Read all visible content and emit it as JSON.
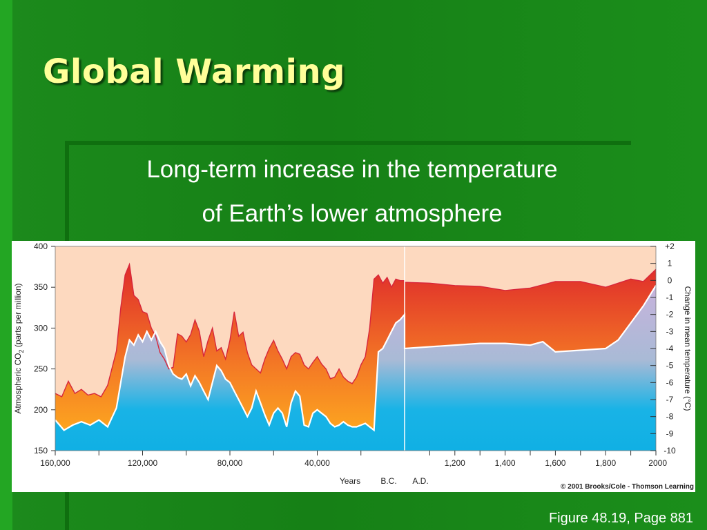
{
  "slide": {
    "title": "Global Warming",
    "subtitle_line1": "Long-term increase in the temperature",
    "subtitle_line2": "of Earth’s lower atmosphere",
    "figure_ref": "Figure 48.19, Page 881"
  },
  "colors": {
    "background": "#168016",
    "title": "#ffff99",
    "co2_line": "#d7263b",
    "temperature_line": "#ffffff",
    "sky_region": "#fdd9bf",
    "co2_gradient_top": "#df2b2b",
    "co2_gradient_bottom": "#ffb21e",
    "temp_fill_top": "#c7b3dc",
    "temp_fill_bottom": "#19b3e6"
  },
  "chart_data": {
    "type": "area",
    "x_axis": {
      "bc_tick_labels": [
        "160,000",
        "120,000",
        "80,000",
        "40,000"
      ],
      "ad_tick_labels": [
        "1,200",
        "1,400",
        "1,600",
        "1,800",
        "2000"
      ],
      "label": "Years",
      "bc_label": "B.C.",
      "ad_label": "A.D."
    },
    "y_left": {
      "label": "Atmospheric CO2 (parts per million)",
      "label_main": "Atmospheric CO",
      "label_sub": "2",
      "label_rest": " (parts per million)",
      "ticks": [
        "150",
        "200",
        "250",
        "300",
        "350",
        "400"
      ],
      "range": [
        150,
        400
      ]
    },
    "y_right": {
      "label": "Change in mean temperature (°C)",
      "ticks": [
        "+2",
        "1",
        "0",
        "-1",
        "-2",
        "-3",
        "-4",
        "-5",
        "-6",
        "-7",
        "-8",
        "-9",
        "-10"
      ],
      "range": [
        -10,
        2
      ]
    },
    "series": [
      {
        "name": "CO2",
        "bc": {
          "x": [
            160000,
            157000,
            154000,
            151000,
            148000,
            145000,
            142000,
            139000,
            136000,
            132000,
            130000,
            128000,
            126000,
            124000,
            122000,
            120000,
            118000,
            116000,
            114000,
            112000,
            110000,
            108000,
            106000,
            104000,
            102000,
            100000,
            98000,
            96000,
            94000,
            92000,
            90000,
            88000,
            86000,
            84000,
            82000,
            80000,
            78000,
            76000,
            74000,
            72000,
            70000,
            68000,
            66000,
            64000,
            62000,
            60000,
            58000,
            56000,
            54000,
            52000,
            50000,
            48000,
            46000,
            44000,
            42000,
            40000,
            38000,
            36000,
            34000,
            32000,
            30000,
            28000,
            26000,
            24000,
            22000,
            20000,
            18000,
            16000,
            14000,
            12000,
            10000,
            8000,
            6000,
            4000,
            2000,
            0
          ],
          "values": [
            220,
            216,
            235,
            220,
            225,
            218,
            220,
            216,
            230,
            272,
            325,
            365,
            378,
            340,
            335,
            320,
            318,
            300,
            290,
            270,
            262,
            250,
            252,
            293,
            290,
            283,
            292,
            310,
            296,
            265,
            285,
            300,
            272,
            276,
            262,
            285,
            320,
            290,
            295,
            270,
            255,
            250,
            245,
            262,
            275,
            285,
            272,
            262,
            250,
            265,
            270,
            268,
            255,
            250,
            258,
            265,
            256,
            250,
            238,
            240,
            250,
            240,
            235,
            232,
            240,
            255,
            265,
            300,
            360,
            365,
            355,
            362,
            350,
            360,
            358,
            358
          ]
        },
        "ad": {
          "x": [
            1000,
            1100,
            1200,
            1300,
            1400,
            1500,
            1600,
            1700,
            1800,
            1900,
            1950,
            2000
          ],
          "values": [
            356,
            355,
            352,
            351,
            346,
            349,
            357,
            357,
            350,
            360,
            357,
            372
          ]
        }
      },
      {
        "name": "Temperature",
        "bc": {
          "x": [
            160000,
            156000,
            152000,
            148000,
            144000,
            140000,
            136000,
            132000,
            128000,
            126000,
            124000,
            122000,
            120000,
            118000,
            116000,
            114000,
            112000,
            110000,
            108000,
            106000,
            104000,
            102000,
            100000,
            98000,
            96000,
            94000,
            92000,
            90000,
            88000,
            86000,
            84000,
            82000,
            80000,
            78000,
            76000,
            74000,
            72000,
            70000,
            68000,
            66000,
            64000,
            62000,
            60000,
            58000,
            56000,
            54000,
            52000,
            50000,
            48000,
            46000,
            44000,
            42000,
            40000,
            38000,
            36000,
            34000,
            32000,
            30000,
            28000,
            26000,
            24000,
            22000,
            20000,
            18000,
            16000,
            14000,
            12000,
            10000,
            8000,
            6000,
            4000,
            2000,
            0
          ],
          "values": [
            -8.2,
            -8.8,
            -8.5,
            -8.3,
            -8.5,
            -8.2,
            -8.6,
            -7.5,
            -4.5,
            -3.5,
            -3.8,
            -3.2,
            -3.6,
            -3.0,
            -3.5,
            -3.0,
            -3.6,
            -4.0,
            -5.0,
            -5.5,
            -5.7,
            -5.8,
            -5.5,
            -6.2,
            -5.6,
            -6.0,
            -6.5,
            -7.0,
            -6.0,
            -5.0,
            -5.3,
            -5.8,
            -6.0,
            -6.5,
            -7.0,
            -7.5,
            -8.0,
            -7.5,
            -6.5,
            -7.2,
            -7.9,
            -8.5,
            -7.8,
            -7.5,
            -7.8,
            -8.6,
            -7.2,
            -6.5,
            -6.8,
            -8.5,
            -8.6,
            -7.8,
            -7.6,
            -7.8,
            -8.0,
            -8.4,
            -8.6,
            -8.5,
            -8.3,
            -8.5,
            -8.6,
            -8.6,
            -8.5,
            -8.4,
            -8.6,
            -8.8,
            -4.2,
            -4.0,
            -3.5,
            -3.0,
            -2.5,
            -2.3,
            -2.0
          ]
        },
        "ad": {
          "x": [
            1000,
            1100,
            1200,
            1300,
            1400,
            1500,
            1550,
            1600,
            1700,
            1800,
            1850,
            1900,
            1950,
            2000
          ],
          "values": [
            -4.0,
            -3.9,
            -3.8,
            -3.7,
            -3.7,
            -3.8,
            -3.6,
            -4.2,
            -4.1,
            -4.0,
            -3.5,
            -2.5,
            -1.5,
            -0.3
          ]
        }
      }
    ],
    "copyright": "© 2001 Brooks/Cole - Thomson Learning",
    "grid": false,
    "legend": "none"
  }
}
